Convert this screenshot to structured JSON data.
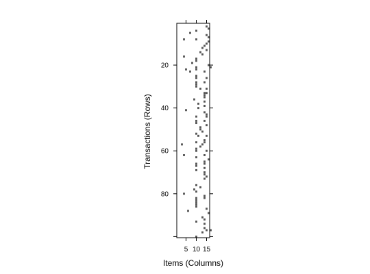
{
  "chart_data": {
    "type": "heatmap",
    "title": "",
    "xlabel": "Items (Columns)",
    "ylabel": "Transactions (Rows)",
    "xlim": [
      0.5,
      16.5
    ],
    "ylim": [
      100.5,
      0.5
    ],
    "x_ticks": [
      5,
      10,
      15
    ],
    "y_ticks": [
      20,
      40,
      60,
      80
    ],
    "cell_color": "#555555",
    "background": "#ffffff",
    "grid": false,
    "cells": [
      [
        15,
        2
      ],
      [
        16,
        3
      ],
      [
        10,
        4
      ],
      [
        7,
        5
      ],
      [
        15,
        6
      ],
      [
        16,
        7
      ],
      [
        4,
        8
      ],
      [
        10,
        8
      ],
      [
        16,
        9
      ],
      [
        15,
        10
      ],
      [
        14,
        11
      ],
      [
        13,
        12
      ],
      [
        15,
        13
      ],
      [
        12,
        14
      ],
      [
        13,
        15
      ],
      [
        4,
        16
      ],
      [
        10,
        17
      ],
      [
        10,
        18
      ],
      [
        8,
        19
      ],
      [
        16,
        20
      ],
      [
        10,
        21
      ],
      [
        17,
        21
      ],
      [
        5,
        22
      ],
      [
        10,
        22
      ],
      [
        7,
        23
      ],
      [
        14,
        23
      ],
      [
        10,
        25
      ],
      [
        10,
        26
      ],
      [
        15,
        26
      ],
      [
        10,
        28
      ],
      [
        14,
        28
      ],
      [
        10,
        29
      ],
      [
        10,
        30
      ],
      [
        12,
        31
      ],
      [
        15,
        31
      ],
      [
        14,
        33
      ],
      [
        15,
        33
      ],
      [
        14,
        34
      ],
      [
        14,
        35
      ],
      [
        9,
        36
      ],
      [
        14,
        37
      ],
      [
        11,
        38
      ],
      [
        14,
        39
      ],
      [
        11,
        40
      ],
      [
        5,
        41
      ],
      [
        14,
        42
      ],
      [
        15,
        43
      ],
      [
        10,
        44
      ],
      [
        15,
        44
      ],
      [
        10,
        46
      ],
      [
        14,
        46
      ],
      [
        10,
        47
      ],
      [
        15,
        48
      ],
      [
        12,
        49
      ],
      [
        12,
        50
      ],
      [
        13,
        51
      ],
      [
        10,
        52
      ],
      [
        11,
        53
      ],
      [
        15,
        53
      ],
      [
        14,
        55
      ],
      [
        10,
        56
      ],
      [
        14,
        56
      ],
      [
        3,
        57
      ],
      [
        13,
        57
      ],
      [
        12,
        58
      ],
      [
        10,
        59
      ],
      [
        10,
        60
      ],
      [
        15,
        60
      ],
      [
        4,
        62
      ],
      [
        14,
        62
      ],
      [
        10,
        63
      ],
      [
        16,
        64
      ],
      [
        14,
        65
      ],
      [
        10,
        66
      ],
      [
        14,
        66
      ],
      [
        10,
        67
      ],
      [
        14,
        68
      ],
      [
        10,
        69
      ],
      [
        14,
        70
      ],
      [
        14,
        71
      ],
      [
        15,
        72
      ],
      [
        14,
        73
      ],
      [
        10,
        76
      ],
      [
        12,
        77
      ],
      [
        9,
        78
      ],
      [
        10,
        79
      ],
      [
        4,
        80
      ],
      [
        14,
        81
      ],
      [
        10,
        82
      ],
      [
        14,
        82
      ],
      [
        10,
        83
      ],
      [
        10,
        84
      ],
      [
        10,
        85
      ],
      [
        10,
        86
      ],
      [
        15,
        87
      ],
      [
        6,
        88
      ],
      [
        16,
        89
      ],
      [
        13,
        91
      ],
      [
        14,
        92
      ],
      [
        10,
        93
      ],
      [
        14,
        94
      ],
      [
        14,
        96
      ],
      [
        15,
        97
      ],
      [
        17,
        97
      ],
      [
        13,
        98
      ],
      [
        10,
        100
      ]
    ]
  }
}
